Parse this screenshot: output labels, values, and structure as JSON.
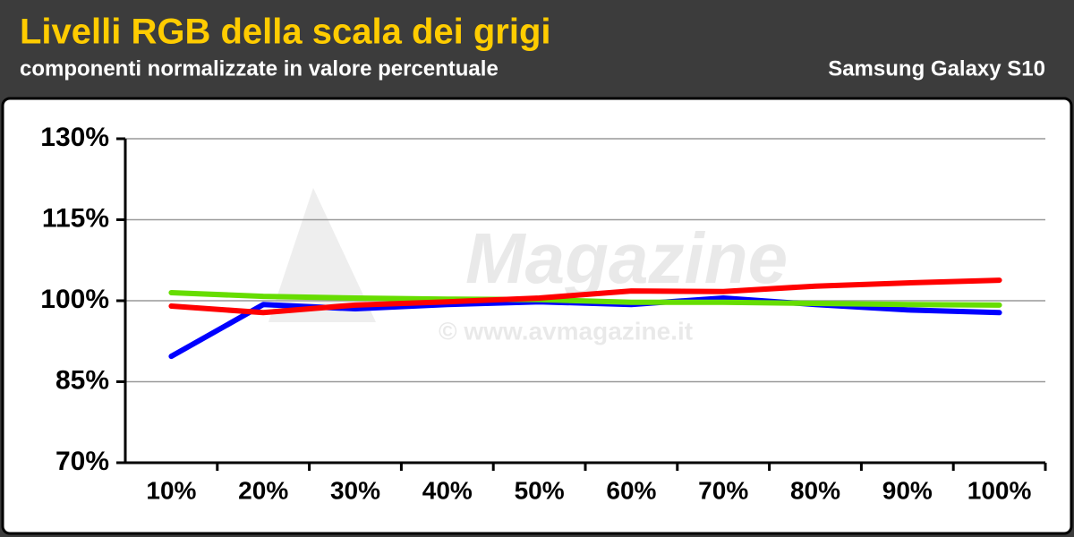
{
  "chart_data": {
    "type": "line",
    "title": "Livelli RGB della scala dei grigi",
    "subtitle": "componenti normalizzate in valore percentuale",
    "device": "Samsung Galaxy S10",
    "watermark": "Magazine",
    "watermark_url": "© www.avmagazine.it",
    "categories": [
      "10%",
      "20%",
      "30%",
      "40%",
      "50%",
      "60%",
      "70%",
      "80%",
      "90%",
      "100%"
    ],
    "series": [
      {
        "color": "#0000ff",
        "values": [
          89.7,
          99.3,
          98.5,
          99.3,
          99.8,
          99.3,
          100.5,
          99.3,
          98.3,
          97.8
        ]
      },
      {
        "color": "#66dd00",
        "values": [
          101.5,
          100.8,
          100.5,
          100.3,
          100.2,
          99.7,
          99.7,
          99.5,
          99.3,
          99.2
        ]
      },
      {
        "color": "#ff0000",
        "values": [
          99.0,
          97.8,
          99.2,
          99.8,
          100.5,
          101.8,
          101.7,
          102.7,
          103.3,
          103.8
        ]
      }
    ],
    "ylim": [
      70,
      130
    ],
    "yticks": [
      {
        "value": 70,
        "label": "70%"
      },
      {
        "value": 85,
        "label": "85%"
      },
      {
        "value": 100,
        "label": "100%"
      },
      {
        "value": 115,
        "label": "115%"
      },
      {
        "value": 130,
        "label": "130%"
      }
    ],
    "grid": true
  }
}
